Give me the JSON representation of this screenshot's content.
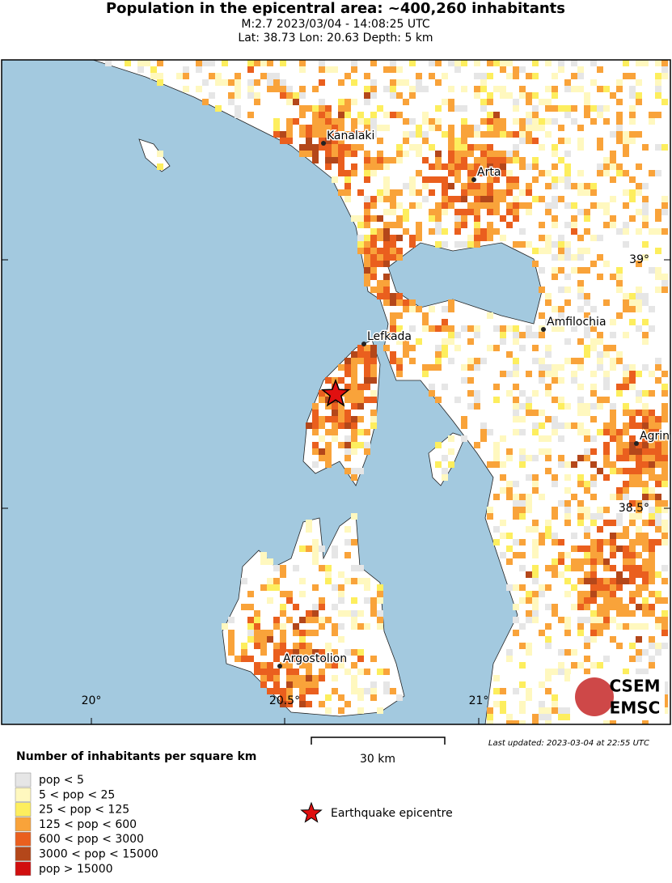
{
  "header": {
    "title": "Population in the epicentral area: ~400,260 inhabitants",
    "line1": "M:2.7 2023/03/04 - 14:08:25 UTC",
    "line2": "Lat: 38.73 Lon: 20.63 Depth: 5 km"
  },
  "map": {
    "cities": [
      {
        "label": "Kanalaki"
      },
      {
        "label": "Arta"
      },
      {
        "label": "Lefkada"
      },
      {
        "label": "Amfilochia"
      },
      {
        "label": "Agrin"
      },
      {
        "label": "Argostolion"
      }
    ],
    "lon_labels": [
      "20°",
      "20.5°",
      "21°"
    ],
    "lat_labels": [
      "39°",
      "38.5°"
    ],
    "logo": [
      "CSEM",
      "EMSC"
    ],
    "scale_bar": "30 km",
    "last_updated": "Last updated: 2023-03-04 at 22:55 UTC"
  },
  "legend": {
    "title": "Number of inhabitants per square km",
    "items": [
      {
        "label": "pop < 5",
        "color": "#e6e6e6"
      },
      {
        "label": "5 < pop < 25",
        "color": "#fff8bf"
      },
      {
        "label": "25 < pop < 125",
        "color": "#fdee5e"
      },
      {
        "label": "125 < pop < 600",
        "color": "#f9a33a"
      },
      {
        "label": "600 < pop < 3000",
        "color": "#ea5f1e"
      },
      {
        "label": "3000 < pop < 15000",
        "color": "#b4471a"
      },
      {
        "label": "pop > 15000",
        "color": "#d10f0f"
      }
    ],
    "epicentre": "Earthquake epicentre"
  }
}
